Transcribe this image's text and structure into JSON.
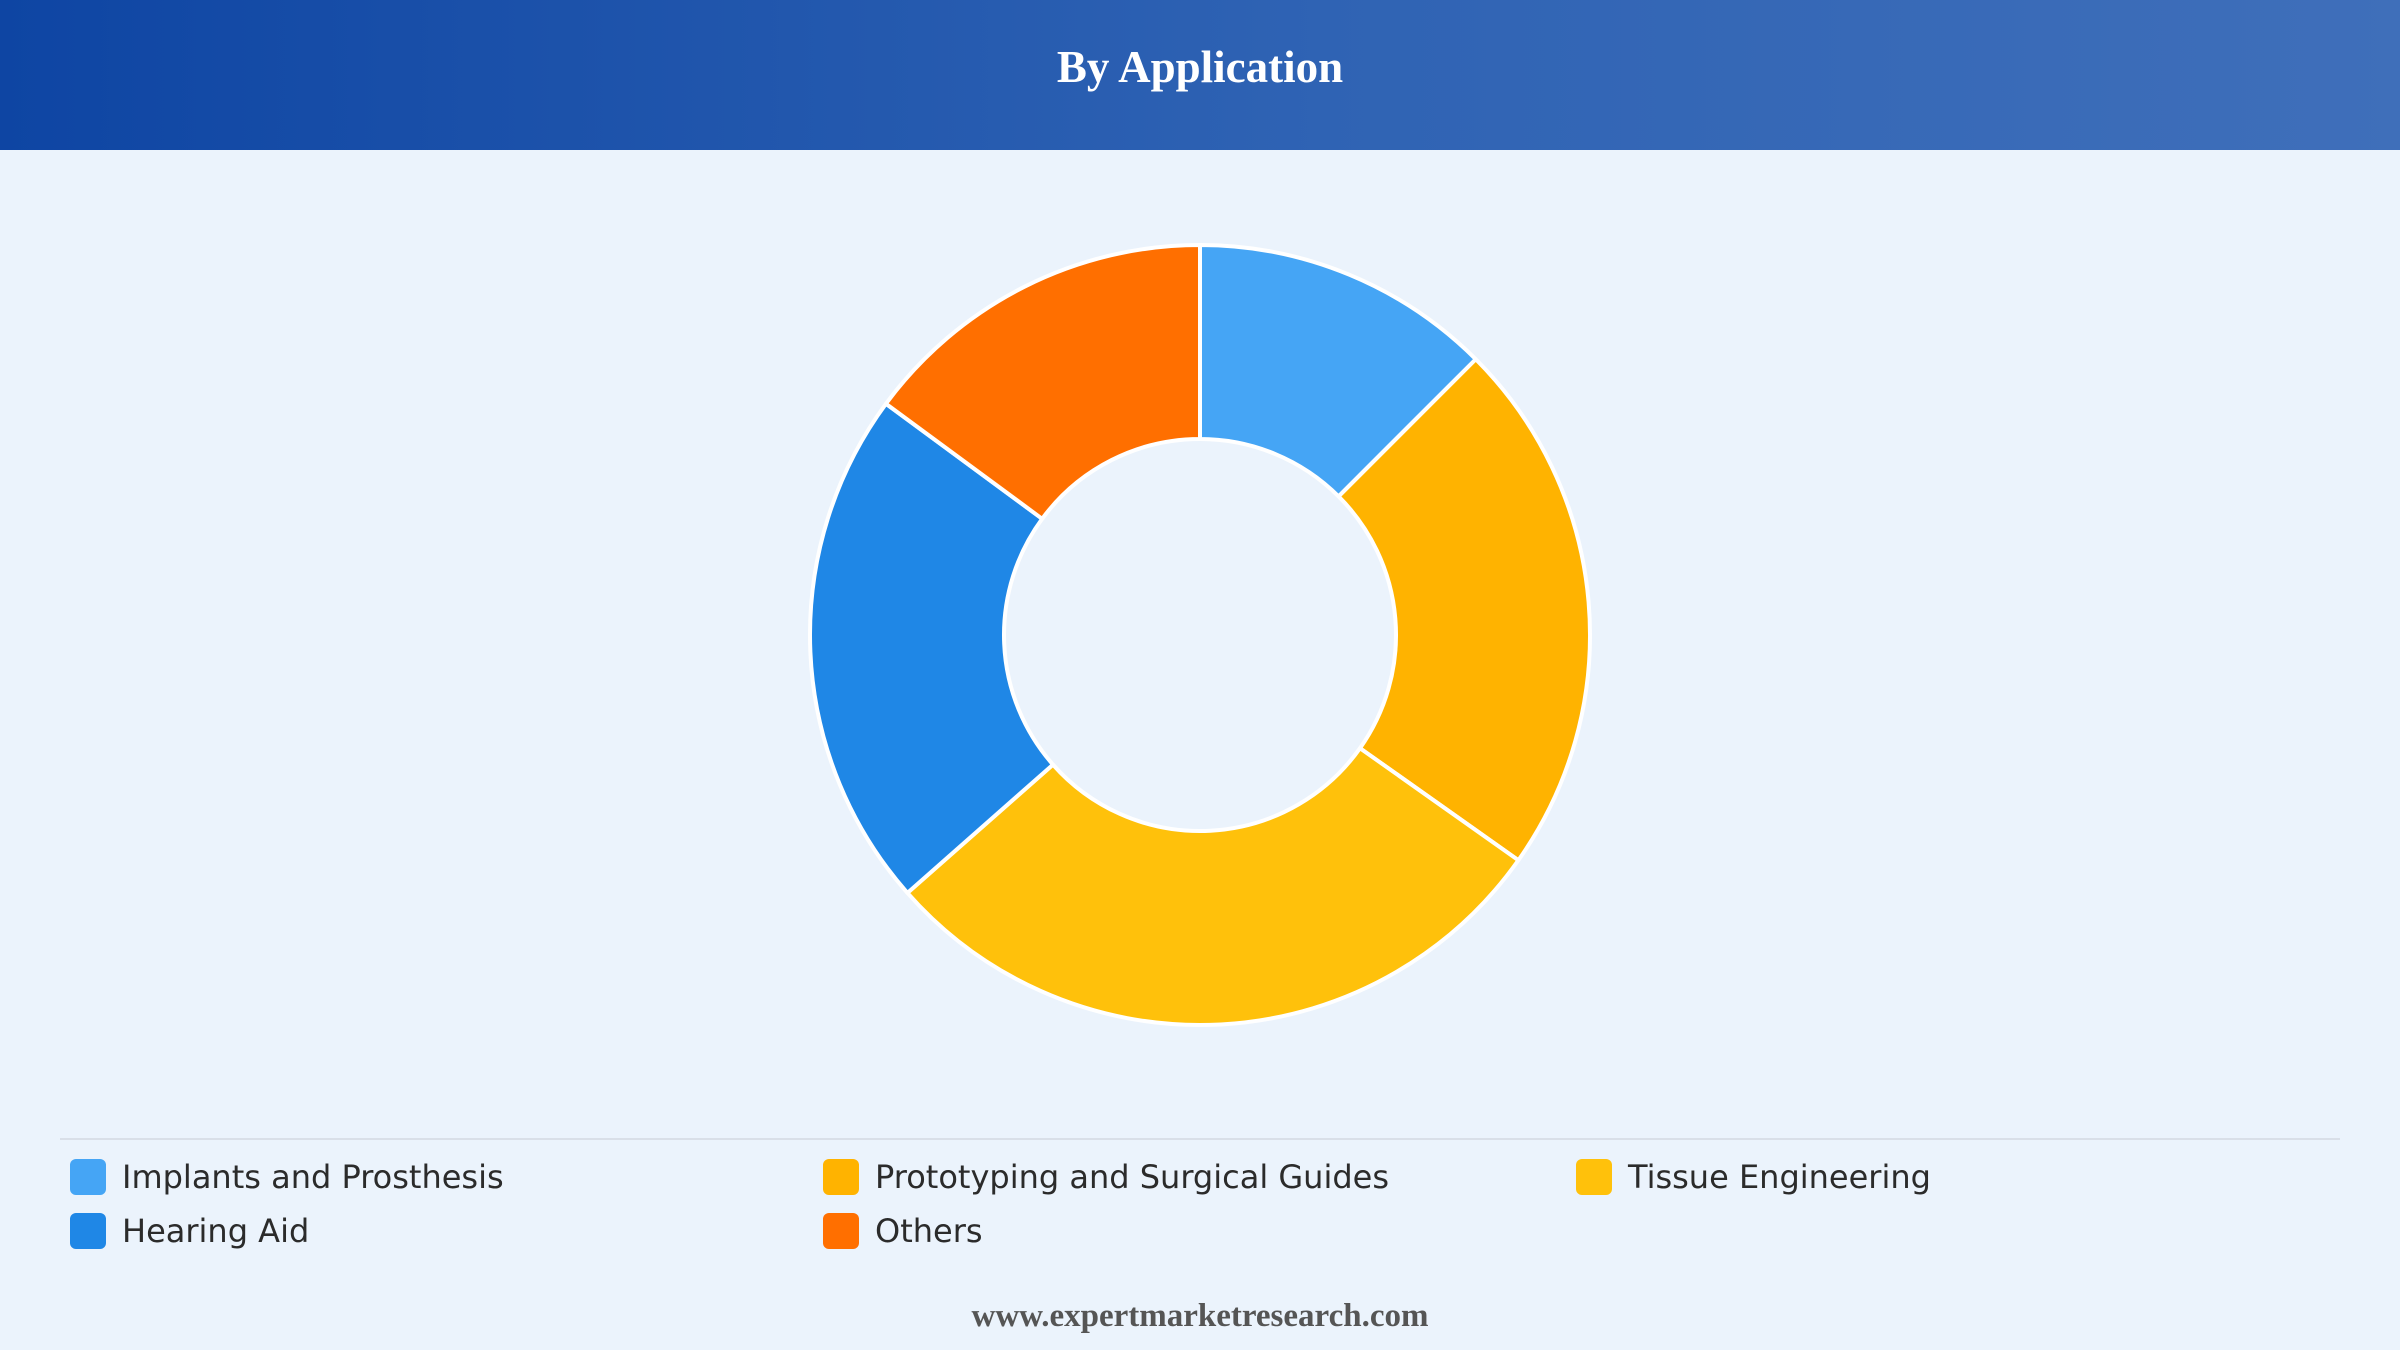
{
  "header": {
    "title": "By Application"
  },
  "chart_data": {
    "type": "pie",
    "title": "By Application",
    "donut": true,
    "start_angle_deg": 0,
    "direction": "clockwise",
    "legend_position": "bottom",
    "categories": [
      "Implants and Prosthesis",
      "Prototyping and Surgical Guides",
      "Tissue Engineering",
      "Hearing Aid",
      "Others"
    ],
    "values": [
      12.5,
      22.3,
      28.7,
      21.6,
      14.9
    ],
    "colors": [
      "#45a5f5",
      "#ffb300",
      "#ffc10b",
      "#1f87e6",
      "#ff6f00"
    ]
  },
  "legend": {
    "items": [
      {
        "label": "Implants and Prosthesis",
        "color": "#45a5f5"
      },
      {
        "label": "Prototyping and Surgical Guides",
        "color": "#ffb300"
      },
      {
        "label": "Tissue Engineering",
        "color": "#ffc10b"
      },
      {
        "label": "Hearing Aid",
        "color": "#1f87e6"
      },
      {
        "label": "Others",
        "color": "#ff6f00"
      }
    ]
  },
  "footer": {
    "url": "www.expertmarketresearch.com"
  }
}
